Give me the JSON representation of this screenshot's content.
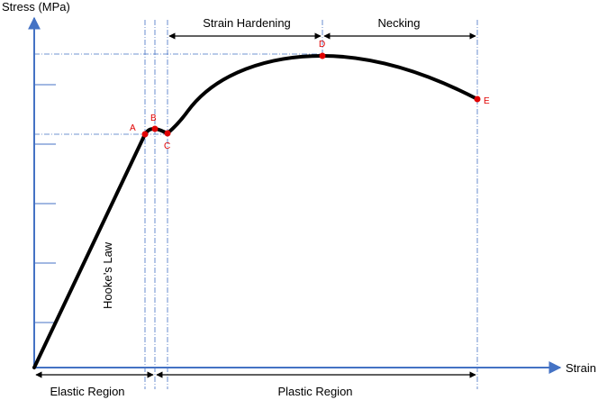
{
  "axes": {
    "y_label": "Stress (MPa)",
    "x_label": "Strain",
    "axis_color": "#4472C4"
  },
  "regions": {
    "strain_hardening": "Strain Hardening",
    "necking": "Necking",
    "elastic": "Elastic Region",
    "plastic": "Plastic Region"
  },
  "annotations": {
    "hookes_law": "Hooke’s Law"
  },
  "points": [
    {
      "label": "A"
    },
    {
      "label": "B"
    },
    {
      "label": "C"
    },
    {
      "label": "D"
    },
    {
      "label": "E"
    }
  ],
  "colors": {
    "curve": "#000000",
    "points": "#E00000",
    "guides": "#4472C4"
  }
}
